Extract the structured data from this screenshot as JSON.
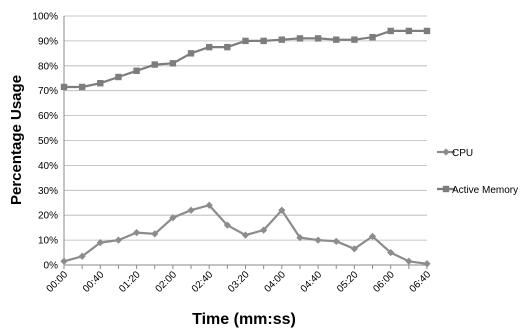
{
  "chart_data": {
    "type": "line",
    "xlabel": "Time (mm:ss)",
    "ylabel": "Percentage Usage",
    "ylim": [
      0,
      100
    ],
    "yticks": [
      "0%",
      "10%",
      "20%",
      "30%",
      "40%",
      "50%",
      "60%",
      "70%",
      "80%",
      "90%",
      "100%"
    ],
    "yticks_values": [
      0,
      10,
      20,
      30,
      40,
      50,
      60,
      70,
      80,
      90,
      100
    ],
    "grid": true,
    "legend_placement": "right",
    "xtick_labels": [
      "00:00",
      "00:40",
      "01:20",
      "02:00",
      "02:40",
      "03:20",
      "04:00",
      "04:40",
      "05:20",
      "06:00",
      "06:40"
    ],
    "x": [
      "00:00",
      "00:20",
      "00:40",
      "01:00",
      "01:20",
      "01:40",
      "02:00",
      "02:20",
      "02:40",
      "03:00",
      "03:20",
      "03:40",
      "04:00",
      "04:20",
      "04:40",
      "05:00",
      "05:20",
      "05:40",
      "06:00",
      "06:20",
      "06:40"
    ],
    "series": [
      {
        "name": "CPU",
        "color": "#8c8c8c",
        "marker": "diamond",
        "values": [
          1.5,
          3.5,
          9,
          10,
          13,
          12.5,
          19,
          22,
          24,
          16,
          12,
          14,
          22,
          11,
          10,
          9.5,
          6.5,
          11.5,
          5,
          1.5,
          0.5
        ]
      },
      {
        "name": "Active Memory",
        "color": "#7d7d7d",
        "marker": "square",
        "values": [
          71.5,
          71.5,
          73,
          75.5,
          78,
          80.5,
          81,
          85,
          87.5,
          87.5,
          90,
          90,
          90.5,
          91,
          91,
          90.5,
          90.5,
          91.5,
          94,
          94,
          94
        ]
      }
    ]
  }
}
